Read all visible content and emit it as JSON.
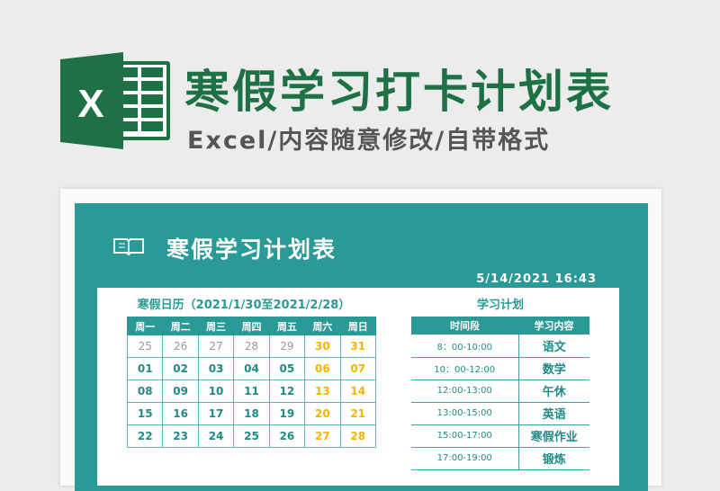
{
  "header": {
    "title": "寒假学习打卡计划表",
    "subtitle": "Excel/内容随意修改/自带格式",
    "logo_letter": "X"
  },
  "sheet": {
    "title": "寒假学习计划表",
    "datetime": "5/14/2021  16:43",
    "icon": "book-icon"
  },
  "calendar": {
    "title": "寒假日历（2021/1/30至2021/2/28）",
    "weekdays": [
      "周一",
      "周二",
      "周三",
      "周四",
      "周五",
      "周六",
      "周日"
    ],
    "rows": [
      [
        "25",
        "26",
        "27",
        "28",
        "29",
        "30",
        "31"
      ],
      [
        "01",
        "02",
        "03",
        "04",
        "05",
        "06",
        "07"
      ],
      [
        "08",
        "09",
        "10",
        "11",
        "12",
        "13",
        "14"
      ],
      [
        "15",
        "16",
        "17",
        "18",
        "19",
        "20",
        "21"
      ],
      [
        "22",
        "23",
        "24",
        "25",
        "26",
        "27",
        "28"
      ]
    ]
  },
  "plan": {
    "title": "学习计划",
    "headers": [
      "时间段",
      "学习内容"
    ],
    "rows": [
      [
        "8：00-10:00",
        "语文"
      ],
      [
        "10：00-12:00",
        "数学"
      ],
      [
        "12:00-13:00",
        "午休"
      ],
      [
        "13:00-15:00",
        "英语"
      ],
      [
        "15:00-17:00",
        "寒假作业"
      ],
      [
        "17:00-19:00",
        "锻炼"
      ]
    ]
  },
  "colors": {
    "teal": "#2a9a96",
    "green": "#1e7145",
    "weekend": "#f5b400"
  }
}
